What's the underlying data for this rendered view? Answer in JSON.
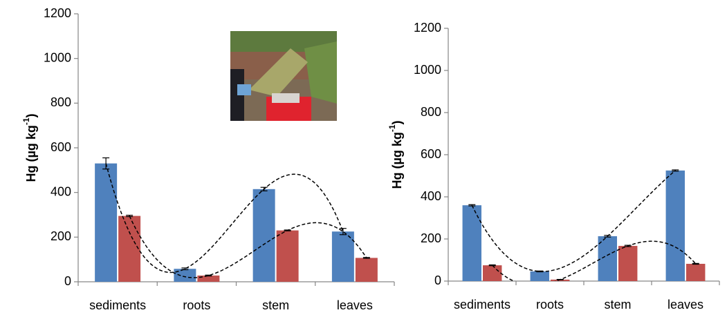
{
  "chart_data": [
    {
      "type": "bar",
      "ylabel": "Hg (µg kg",
      "ylabel_sup": "-1",
      "ylabel_end": ")",
      "categories": [
        "sediments",
        "roots",
        "stem",
        "leaves"
      ],
      "series": [
        {
          "color": "#4f81bd",
          "values": [
            530,
            58,
            415,
            225
          ],
          "errors": [
            25,
            4,
            8,
            14
          ]
        },
        {
          "color": "#c0504d",
          "values": [
            295,
            28,
            230,
            107
          ],
          "errors": [
            3,
            2,
            2,
            2
          ]
        }
      ],
      "ylim": [
        0,
        1200
      ],
      "yticks": [
        0,
        200,
        400,
        600,
        800,
        1000,
        1200
      ],
      "trendline": true
    },
    {
      "type": "bar",
      "ylabel": "Hg (µg kg",
      "ylabel_sup": "-1",
      "ylabel_end": ")",
      "categories": [
        "sediments",
        "roots",
        "stem",
        "leaves"
      ],
      "series": [
        {
          "color": "#4f81bd",
          "values": [
            360,
            46,
            213,
            525
          ],
          "errors": [
            3,
            2,
            4,
            3
          ]
        },
        {
          "color": "#c0504d",
          "values": [
            75,
            7,
            167,
            82
          ],
          "errors": [
            2,
            1,
            3,
            2
          ]
        }
      ],
      "ylim": [
        0,
        1200
      ],
      "yticks": [
        0,
        200,
        400,
        600,
        800,
        1000,
        1200
      ],
      "trendline": true
    }
  ]
}
